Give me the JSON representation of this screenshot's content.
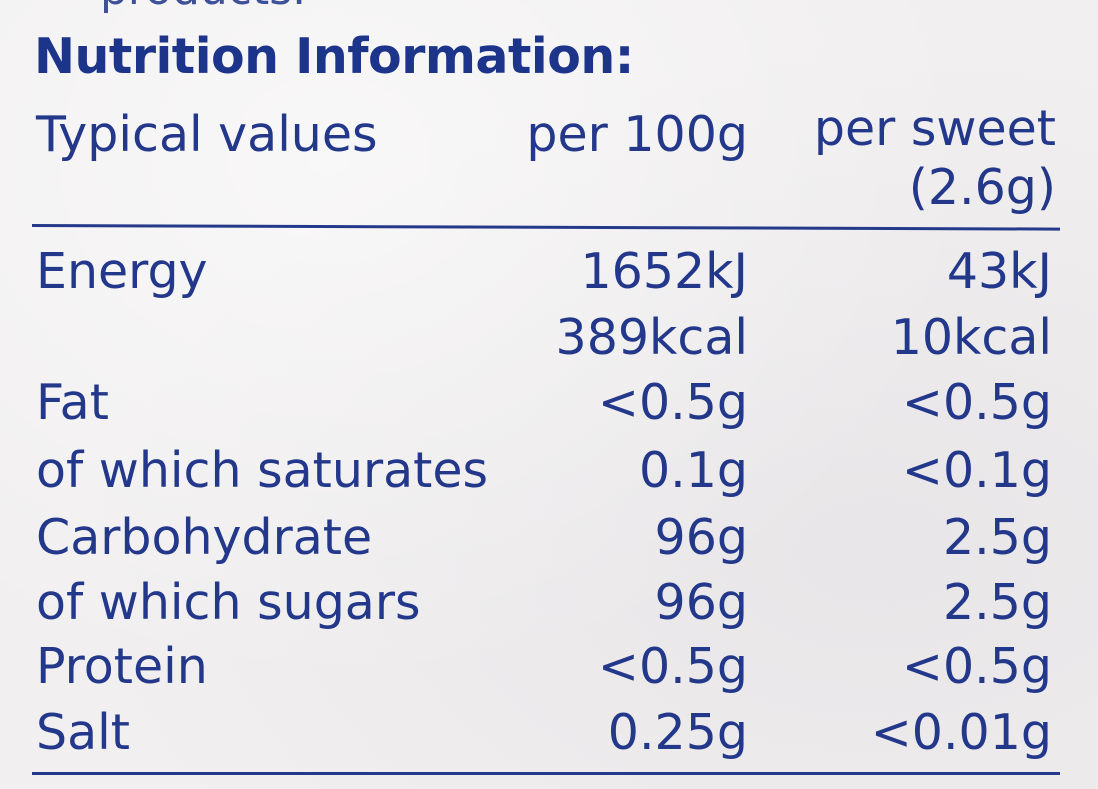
{
  "panel": {
    "top_fragment": "products.",
    "title": "Nutrition Information:"
  },
  "table": {
    "headers": {
      "label": "Typical values",
      "per_100g": "per 100g",
      "per_serving_line1": "per sweet",
      "per_serving_line2": "(2.6g)"
    },
    "rows": [
      {
        "label": "Energy",
        "per_100g": "1652kJ",
        "per_serving": "43kJ"
      },
      {
        "label": "",
        "per_100g": "389kcal",
        "per_serving": "10kcal"
      },
      {
        "label": "Fat",
        "per_100g": "<0.5g",
        "per_serving": "<0.5g"
      },
      {
        "label": "of which saturates",
        "per_100g": "0.1g",
        "per_serving": "<0.1g"
      },
      {
        "label": "Carbohydrate",
        "per_100g": "96g",
        "per_serving": "2.5g"
      },
      {
        "label": "of which sugars",
        "per_100g": "96g",
        "per_serving": "2.5g"
      },
      {
        "label": "Protein",
        "per_100g": "<0.5g",
        "per_serving": "<0.5g"
      },
      {
        "label": "Salt",
        "per_100g": "0.25g",
        "per_serving": "<0.01g"
      }
    ]
  },
  "colors": {
    "text": "#1e3483",
    "background": "#f1efef"
  }
}
